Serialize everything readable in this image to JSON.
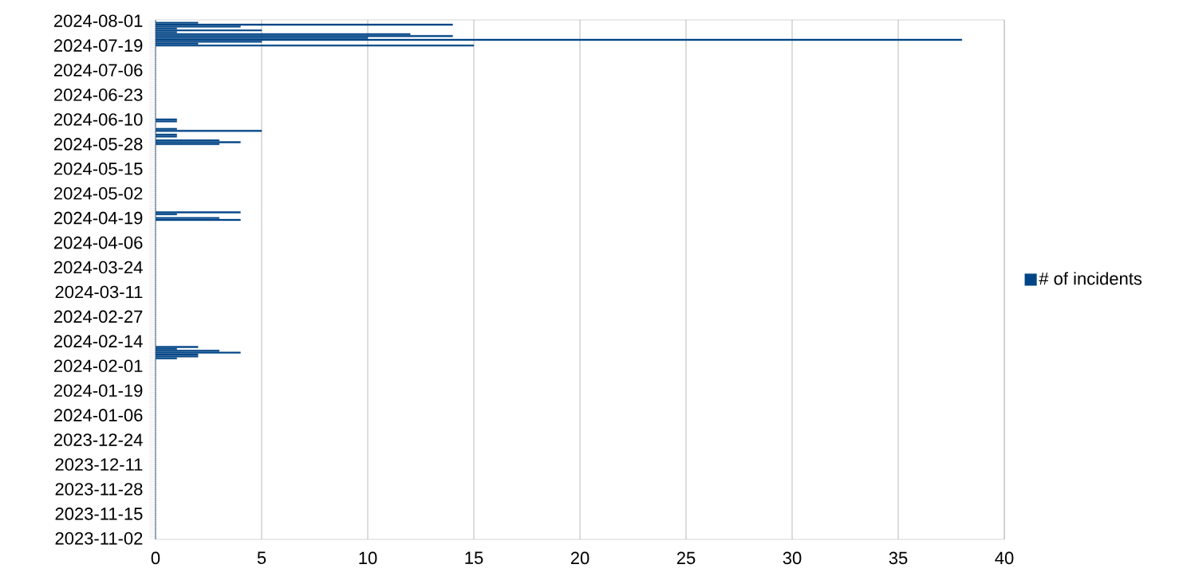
{
  "chart_data": {
    "type": "bar",
    "orientation": "horizontal",
    "categories": [
      "2024-08-01",
      null,
      null,
      null,
      null,
      null,
      null,
      null,
      null,
      null,
      null,
      null,
      null,
      "2024-07-19",
      null,
      null,
      null,
      null,
      null,
      null,
      null,
      null,
      null,
      null,
      null,
      null,
      "2024-07-06",
      null,
      null,
      null,
      null,
      null,
      null,
      null,
      null,
      null,
      null,
      null,
      null,
      "2024-06-23",
      null,
      null,
      null,
      null,
      null,
      null,
      null,
      null,
      null,
      null,
      null,
      null,
      "2024-06-10",
      null,
      null,
      null,
      null,
      null,
      null,
      null,
      null,
      null,
      null,
      null,
      null,
      "2024-05-28",
      null,
      null,
      null,
      null,
      null,
      null,
      null,
      null,
      null,
      null,
      null,
      null,
      "2024-05-15",
      null,
      null,
      null,
      null,
      null,
      null,
      null,
      null,
      null,
      null,
      null,
      null,
      "2024-05-02",
      null,
      null,
      null,
      null,
      null,
      null,
      null,
      null,
      null,
      null,
      null,
      null,
      "2024-04-19",
      null,
      null,
      null,
      null,
      null,
      null,
      null,
      null,
      null,
      null,
      null,
      null,
      "2024-04-06",
      null,
      null,
      null,
      null,
      null,
      null,
      null,
      null,
      null,
      null,
      null,
      null,
      "2024-03-24",
      null,
      null,
      null,
      null,
      null,
      null,
      null,
      null,
      null,
      null,
      null,
      null,
      "2024-03-11",
      null,
      null,
      null,
      null,
      null,
      null,
      null,
      null,
      null,
      null,
      null,
      null,
      "2024-02-27",
      null,
      null,
      null,
      null,
      null,
      null,
      null,
      null,
      null,
      null,
      null,
      null,
      "2024-02-14",
      null,
      null,
      null,
      null,
      null,
      null,
      null,
      null,
      null,
      null,
      null,
      null,
      "2024-02-01",
      null,
      null,
      null,
      null,
      null,
      null,
      null,
      null,
      null,
      null,
      null,
      null,
      "2024-01-19",
      null,
      null,
      null,
      null,
      null,
      null,
      null,
      null,
      null,
      null,
      null,
      null,
      "2024-01-06",
      null,
      null,
      null,
      null,
      null,
      null,
      null,
      null,
      null,
      null,
      null,
      null,
      "2023-12-24",
      null,
      null,
      null,
      null,
      null,
      null,
      null,
      null,
      null,
      null,
      null,
      null,
      "2023-12-11",
      null,
      null,
      null,
      null,
      null,
      null,
      null,
      null,
      null,
      null,
      null,
      null,
      "2023-11-28",
      null,
      null,
      null,
      null,
      null,
      null,
      null,
      null,
      null,
      null,
      null,
      null,
      "2023-11-15",
      null,
      null,
      null,
      null,
      null,
      null,
      null,
      null,
      null,
      null,
      null,
      null,
      "2023-11-02"
    ],
    "series": [
      {
        "name": "# of incidents",
        "color": "#004586",
        "values": [
          0,
          2,
          14,
          4,
          1,
          5,
          1,
          12,
          14,
          10,
          38,
          5,
          2,
          15,
          0,
          0,
          0,
          0,
          0,
          0,
          0,
          0,
          0,
          0,
          0,
          0,
          0,
          0,
          0,
          0,
          0,
          0,
          0,
          0,
          0,
          0,
          0,
          0,
          0,
          0,
          0,
          0,
          0,
          0,
          0,
          0,
          0,
          0,
          0,
          0,
          0,
          0,
          1,
          1,
          0,
          0,
          0,
          1,
          5,
          0,
          1,
          1,
          0,
          3,
          4,
          3,
          0,
          0,
          0,
          0,
          0,
          0,
          0,
          0,
          0,
          0,
          0,
          0,
          0,
          0,
          0,
          0,
          0,
          0,
          0,
          0,
          0,
          0,
          0,
          0,
          0,
          0,
          0,
          0,
          0,
          0,
          0,
          0,
          0,
          0,
          0,
          4,
          1,
          0,
          3,
          4,
          0,
          0,
          0,
          0,
          0,
          0,
          0,
          0,
          0,
          0,
          0,
          0,
          0,
          0,
          0,
          0,
          0,
          0,
          0,
          0,
          0,
          0,
          0,
          0,
          0,
          0,
          0,
          0,
          0,
          0,
          0,
          0,
          0,
          0,
          0,
          0,
          0,
          0,
          0,
          0,
          0,
          0,
          0,
          0,
          0,
          0,
          0,
          0,
          0,
          0,
          0,
          0,
          0,
          0,
          0,
          0,
          0,
          0,
          0,
          0,
          0,
          0,
          0,
          0,
          0,
          0,
          2,
          1,
          3,
          4,
          2,
          2,
          1,
          0,
          0,
          0,
          0,
          0,
          0,
          0,
          0,
          0,
          0,
          0,
          0,
          0,
          0,
          0,
          0,
          0,
          0,
          0,
          0,
          0,
          0,
          0,
          0,
          0,
          0,
          0,
          0,
          0,
          0,
          0,
          0,
          0,
          0,
          0,
          0,
          0,
          0,
          0,
          0,
          0,
          0,
          0,
          0,
          0,
          0,
          0,
          0,
          0,
          0,
          0,
          0,
          0,
          0,
          0,
          0,
          0,
          0,
          0,
          0,
          0,
          0,
          0,
          0,
          0,
          0,
          0,
          0,
          0,
          0,
          0,
          0,
          0,
          0,
          0,
          0,
          0,
          0,
          0,
          0,
          0,
          0,
          0,
          0,
          0,
          0,
          0,
          0,
          0,
          0,
          0,
          0,
          0,
          0,
          0
        ]
      }
    ],
    "xlim": [
      0,
      40
    ],
    "xticks": [
      0,
      5,
      10,
      15,
      20,
      25,
      30,
      35,
      40
    ],
    "grid": "x",
    "legend": "right"
  }
}
